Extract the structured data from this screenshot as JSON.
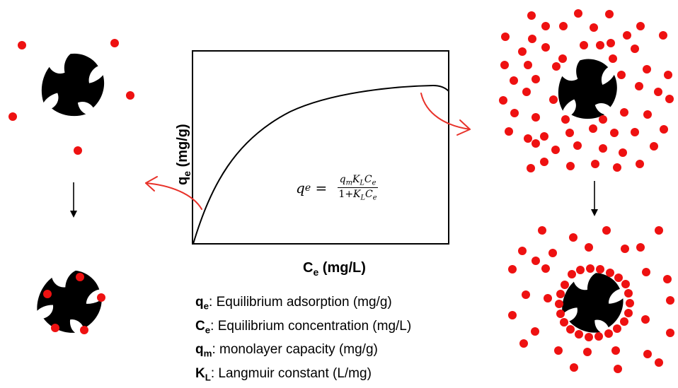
{
  "axes": {
    "x_label": {
      "main": "C",
      "sub": "e",
      "unit": " (mg/L)"
    },
    "y_label": {
      "main": "q",
      "sub": "e",
      "unit": " (mg/g)"
    }
  },
  "equation": {
    "lhs_main": "q",
    "lhs_sub": "e",
    "equals": " = ",
    "numerator": "qₘKʟCₑ",
    "numerator_parts": [
      {
        "m": "q",
        "s": "m"
      },
      {
        "m": "K",
        "s": "L"
      },
      {
        "m": "C",
        "s": "e"
      }
    ],
    "denominator_prefix": "1+",
    "denominator_parts": [
      {
        "m": "K",
        "s": "L"
      },
      {
        "m": "C",
        "s": "e"
      }
    ]
  },
  "legend": [
    {
      "sym": "q",
      "sub": "e",
      "text": ": Equilibrium adsorption (mg/g)"
    },
    {
      "sym": "C",
      "sub": "e",
      "text": ": Equilibrium concentration (mg/L)"
    },
    {
      "sym": "q",
      "sub": "m",
      "text": ": monolayer capacity (mg/g)"
    },
    {
      "sym": "K",
      "sub": "L",
      "text": ":  Langmuir constant (L/mg)"
    }
  ],
  "colors": {
    "adsorbate": "#ee1111",
    "adsorbent": "#000000",
    "arrow_red": "#e8322a",
    "curve": "#000000"
  },
  "icons": [
    "adsorbent-particle-icon",
    "adsorbate-dot-icon",
    "down-arrow-icon",
    "red-arrow-icon"
  ]
}
